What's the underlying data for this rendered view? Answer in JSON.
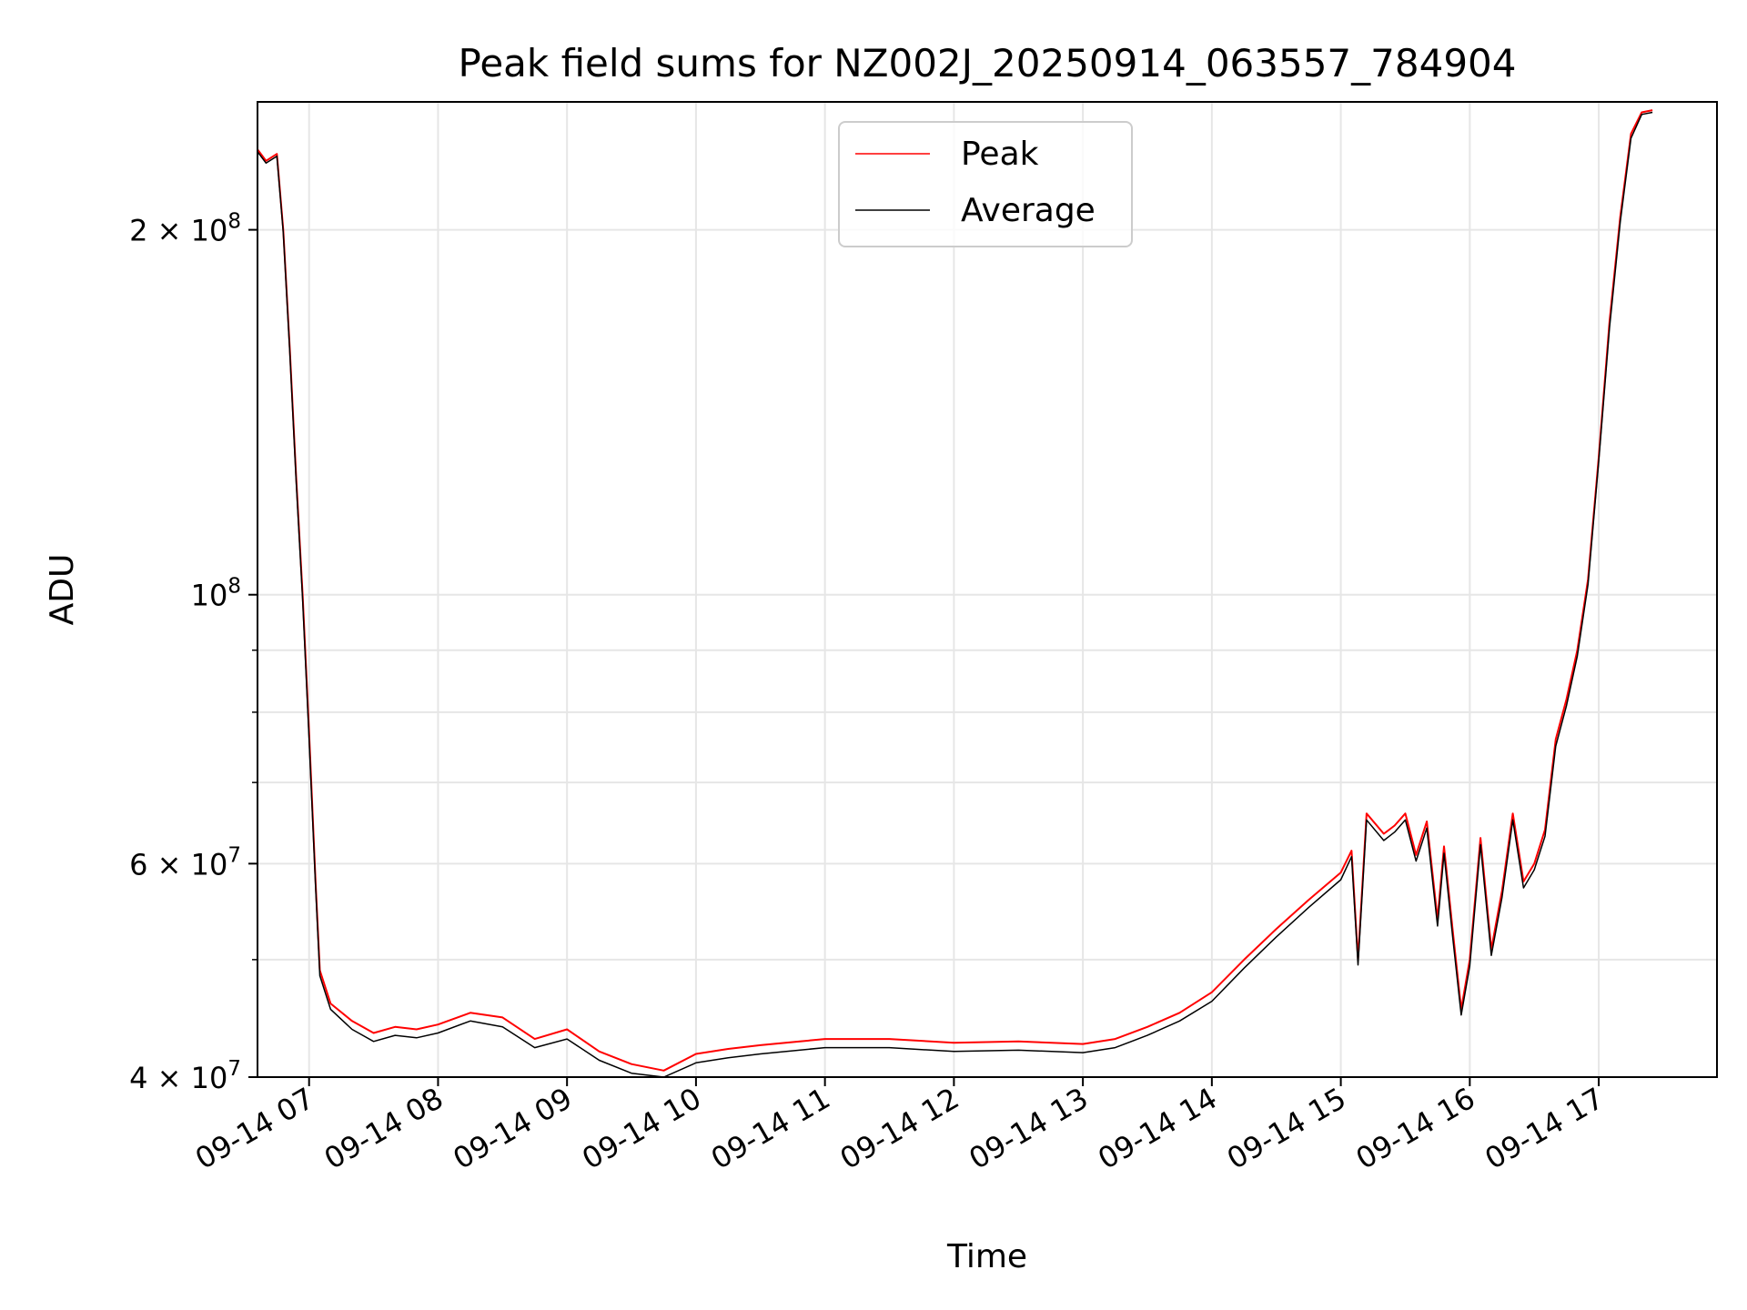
{
  "chart_data": {
    "type": "line",
    "title": "Peak field sums for NZ002J_20250914_063557_784904",
    "xlabel": "Time",
    "ylabel": "ADU",
    "y_scale": "log",
    "ylim": [
      40000000,
      255000000
    ],
    "xlim": [
      "2025-09-14 06:36",
      "2025-09-14 17:55"
    ],
    "grid": true,
    "legend_position": "upper center",
    "x_ticks": [
      "09-14 07",
      "09-14 08",
      "09-14 09",
      "09-14 10",
      "09-14 11",
      "09-14 12",
      "09-14 13",
      "09-14 14",
      "09-14 15",
      "09-14 16",
      "09-14 17"
    ],
    "x_tick_times": [
      "2025-09-14 07:00",
      "2025-09-14 08:00",
      "2025-09-14 09:00",
      "2025-09-14 10:00",
      "2025-09-14 11:00",
      "2025-09-14 12:00",
      "2025-09-14 13:00",
      "2025-09-14 14:00",
      "2025-09-14 15:00",
      "2025-09-14 16:00",
      "2025-09-14 17:00"
    ],
    "y_major_ticks": [
      {
        "value": 40000000,
        "mantissa": "4",
        "base": "10",
        "exp": "7"
      },
      {
        "value": 60000000,
        "mantissa": "6",
        "base": "10",
        "exp": "7"
      },
      {
        "value": 100000000,
        "mantissa": "",
        "base": "10",
        "exp": "8"
      },
      {
        "value": 200000000,
        "mantissa": "2",
        "base": "10",
        "exp": "8"
      }
    ],
    "y_minor_ticks": [
      50000000,
      70000000,
      80000000,
      90000000
    ],
    "series": [
      {
        "name": "Peak",
        "color": "#ff0000",
        "x": [
          "2025-09-14 06:36",
          "2025-09-14 06:40",
          "2025-09-14 06:45",
          "2025-09-14 06:48",
          "2025-09-14 06:51",
          "2025-09-14 06:54",
          "2025-09-14 06:57",
          "2025-09-14 07:00",
          "2025-09-14 07:03",
          "2025-09-14 07:05",
          "2025-09-14 07:10",
          "2025-09-14 07:20",
          "2025-09-14 07:30",
          "2025-09-14 07:40",
          "2025-09-14 07:50",
          "2025-09-14 08:00",
          "2025-09-14 08:15",
          "2025-09-14 08:30",
          "2025-09-14 08:45",
          "2025-09-14 09:00",
          "2025-09-14 09:15",
          "2025-09-14 09:30",
          "2025-09-14 09:45",
          "2025-09-14 10:00",
          "2025-09-14 10:15",
          "2025-09-14 10:30",
          "2025-09-14 11:00",
          "2025-09-14 11:30",
          "2025-09-14 12:00",
          "2025-09-14 12:30",
          "2025-09-14 13:00",
          "2025-09-14 13:15",
          "2025-09-14 13:30",
          "2025-09-14 13:45",
          "2025-09-14 14:00",
          "2025-09-14 14:15",
          "2025-09-14 14:30",
          "2025-09-14 14:45",
          "2025-09-14 15:00",
          "2025-09-14 15:05",
          "2025-09-14 15:08",
          "2025-09-14 15:12",
          "2025-09-14 15:20",
          "2025-09-14 15:25",
          "2025-09-14 15:30",
          "2025-09-14 15:35",
          "2025-09-14 15:40",
          "2025-09-14 15:45",
          "2025-09-14 15:48",
          "2025-09-14 15:52",
          "2025-09-14 15:56",
          "2025-09-14 16:00",
          "2025-09-14 16:05",
          "2025-09-14 16:10",
          "2025-09-14 16:15",
          "2025-09-14 16:20",
          "2025-09-14 16:25",
          "2025-09-14 16:30",
          "2025-09-14 16:35",
          "2025-09-14 16:40",
          "2025-09-14 16:45",
          "2025-09-14 16:50",
          "2025-09-14 16:55",
          "2025-09-14 17:00",
          "2025-09-14 17:05",
          "2025-09-14 17:10",
          "2025-09-14 17:15",
          "2025-09-14 17:20",
          "2025-09-14 17:25"
        ],
        "values": [
          233000000,
          228000000,
          231000000,
          200000000,
          160000000,
          125000000,
          100000000,
          77000000,
          58000000,
          49000000,
          46000000,
          44500000,
          43500000,
          44000000,
          43800000,
          44200000,
          45200000,
          44800000,
          43000000,
          43800000,
          42000000,
          41000000,
          40500000,
          41800000,
          42200000,
          42500000,
          43000000,
          43000000,
          42700000,
          42800000,
          42600000,
          43000000,
          44000000,
          45200000,
          47000000,
          50000000,
          53000000,
          56000000,
          59000000,
          61500000,
          50000000,
          66000000,
          63500000,
          64500000,
          66000000,
          61000000,
          65000000,
          54000000,
          62000000,
          53000000,
          45500000,
          50000000,
          63000000,
          51000000,
          57000000,
          66000000,
          58000000,
          60000000,
          64000000,
          76000000,
          82000000,
          90000000,
          103000000,
          130000000,
          168000000,
          205000000,
          240000000,
          250000000,
          251000000
        ]
      },
      {
        "name": "Average",
        "color": "#000000",
        "x": [
          "2025-09-14 06:36",
          "2025-09-14 06:40",
          "2025-09-14 06:45",
          "2025-09-14 06:48",
          "2025-09-14 06:51",
          "2025-09-14 06:54",
          "2025-09-14 06:57",
          "2025-09-14 07:00",
          "2025-09-14 07:03",
          "2025-09-14 07:05",
          "2025-09-14 07:10",
          "2025-09-14 07:20",
          "2025-09-14 07:30",
          "2025-09-14 07:40",
          "2025-09-14 07:50",
          "2025-09-14 08:00",
          "2025-09-14 08:15",
          "2025-09-14 08:30",
          "2025-09-14 08:45",
          "2025-09-14 09:00",
          "2025-09-14 09:15",
          "2025-09-14 09:30",
          "2025-09-14 09:45",
          "2025-09-14 10:00",
          "2025-09-14 10:15",
          "2025-09-14 10:30",
          "2025-09-14 11:00",
          "2025-09-14 11:30",
          "2025-09-14 12:00",
          "2025-09-14 12:30",
          "2025-09-14 13:00",
          "2025-09-14 13:15",
          "2025-09-14 13:30",
          "2025-09-14 13:45",
          "2025-09-14 14:00",
          "2025-09-14 14:15",
          "2025-09-14 14:30",
          "2025-09-14 14:45",
          "2025-09-14 15:00",
          "2025-09-14 15:05",
          "2025-09-14 15:08",
          "2025-09-14 15:12",
          "2025-09-14 15:20",
          "2025-09-14 15:25",
          "2025-09-14 15:30",
          "2025-09-14 15:35",
          "2025-09-14 15:40",
          "2025-09-14 15:45",
          "2025-09-14 15:48",
          "2025-09-14 15:52",
          "2025-09-14 15:56",
          "2025-09-14 16:00",
          "2025-09-14 16:05",
          "2025-09-14 16:10",
          "2025-09-14 16:15",
          "2025-09-14 16:20",
          "2025-09-14 16:25",
          "2025-09-14 16:30",
          "2025-09-14 16:35",
          "2025-09-14 16:40",
          "2025-09-14 16:45",
          "2025-09-14 16:50",
          "2025-09-14 16:55",
          "2025-09-14 17:00",
          "2025-09-14 17:05",
          "2025-09-14 17:10",
          "2025-09-14 17:15",
          "2025-09-14 17:20",
          "2025-09-14 17:25"
        ],
        "values": [
          232000000,
          227000000,
          230000000,
          199000000,
          159000000,
          124000000,
          99000000,
          76000000,
          57500000,
          48500000,
          45500000,
          43800000,
          42800000,
          43300000,
          43100000,
          43500000,
          44500000,
          44000000,
          42300000,
          43000000,
          41300000,
          40300000,
          40000000,
          41100000,
          41500000,
          41800000,
          42300000,
          42300000,
          42000000,
          42100000,
          41900000,
          42300000,
          43300000,
          44500000,
          46200000,
          49200000,
          52200000,
          55200000,
          58200000,
          60800000,
          49500000,
          65200000,
          62700000,
          63700000,
          65200000,
          60300000,
          64200000,
          53300000,
          61200000,
          52300000,
          45000000,
          49400000,
          62200000,
          50400000,
          56300000,
          65200000,
          57300000,
          59300000,
          63200000,
          75000000,
          81000000,
          89000000,
          102000000,
          129000000,
          166000000,
          203000000,
          238000000,
          249000000,
          250000000
        ]
      }
    ]
  }
}
